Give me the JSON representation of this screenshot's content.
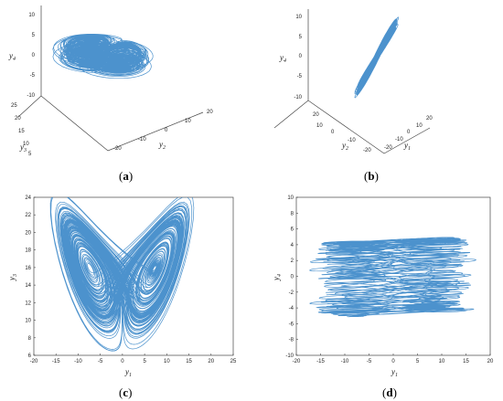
{
  "colors": {
    "trajectory": "#2d7fc4",
    "axis": "#444444"
  },
  "chart_data": [
    {
      "id": "a",
      "type": "line",
      "projection": "3d",
      "caption": "(a)",
      "axes": [
        "y2",
        "y3",
        "y4"
      ],
      "axis_labels": {
        "y2": "y",
        "y2_sub": "2",
        "y3": "y",
        "y3_sub": "3",
        "y4": "y",
        "y4_sub": "4"
      },
      "xlim": [
        -20,
        20
      ],
      "ylim": [
        5,
        25
      ],
      "zlim": [
        -10,
        10
      ],
      "x_ticks": [
        "-20",
        "-10",
        "0",
        "10",
        "20"
      ],
      "y_ticks": [
        "5",
        "10",
        "15",
        "20",
        "25"
      ],
      "z_ticks": [
        "-10",
        "-5",
        "0",
        "5",
        "10"
      ],
      "grid": false
    },
    {
      "id": "b",
      "type": "line",
      "projection": "3d",
      "caption": "(b)",
      "axes": [
        "y1",
        "y2",
        "y4"
      ],
      "axis_labels": {
        "y1": "y",
        "y1_sub": "1",
        "y2": "y",
        "y2_sub": "2",
        "y4": "y",
        "y4_sub": "4"
      },
      "xlim": [
        -20,
        20
      ],
      "ylim": [
        -20,
        20
      ],
      "zlim": [
        -10,
        10
      ],
      "x_ticks": [
        "-20",
        "-10",
        "0",
        "10",
        "20"
      ],
      "y_ticks": [
        "-20",
        "-10",
        "0",
        "10",
        "20"
      ],
      "z_ticks": [
        "-10",
        "-5",
        "0",
        "5",
        "10"
      ],
      "grid": false
    },
    {
      "id": "c",
      "type": "line",
      "caption": "(c)",
      "xlabel": "y",
      "xlabel_sub": "1",
      "ylabel": "y",
      "ylabel_sub": "3",
      "xlim": [
        -20,
        25
      ],
      "ylim": [
        6,
        24
      ],
      "x_ticks": [
        "-20",
        "-15",
        "-10",
        "-5",
        "0",
        "5",
        "10",
        "15",
        "20",
        "25"
      ],
      "y_ticks": [
        "6",
        "8",
        "10",
        "12",
        "14",
        "16",
        "18",
        "20",
        "22",
        "24"
      ],
      "grid": false,
      "description_points": [
        {
          "x": -8,
          "y": 15.5
        },
        {
          "x": 8,
          "y": 17.5
        },
        {
          "x": 0,
          "y": 14
        }
      ]
    },
    {
      "id": "d",
      "type": "line",
      "caption": "(d)",
      "xlabel": "y",
      "xlabel_sub": "1",
      "ylabel": "y",
      "ylabel_sub": "4",
      "xlim": [
        -20,
        20
      ],
      "ylim": [
        -10,
        10
      ],
      "x_ticks": [
        "-20",
        "-15",
        "-10",
        "-5",
        "0",
        "5",
        "10",
        "15",
        "20"
      ],
      "y_ticks": [
        "-10",
        "-8",
        "-6",
        "-4",
        "-2",
        "0",
        "2",
        "4",
        "6",
        "8",
        "10"
      ],
      "grid": false
    }
  ]
}
